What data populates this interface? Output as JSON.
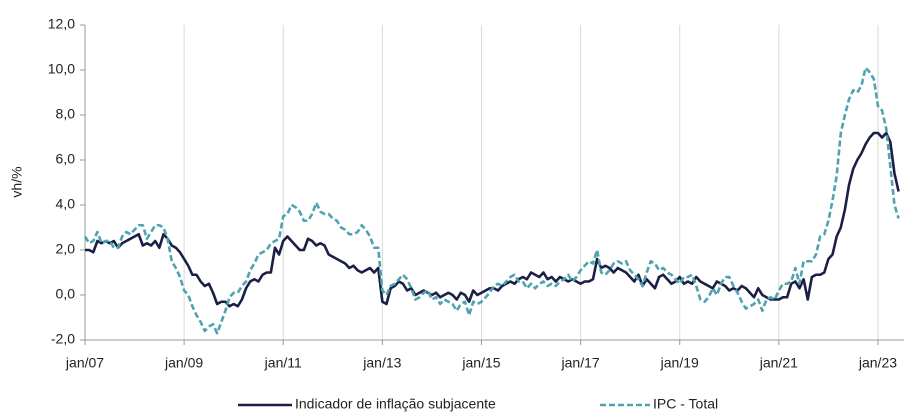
{
  "chart_data": {
    "type": "line",
    "y_label": "vh/%",
    "categories": [
      "jan/07",
      null,
      null,
      null,
      null,
      null,
      null,
      null,
      null,
      null,
      null,
      null,
      null,
      null,
      null,
      null,
      null,
      null,
      null,
      null,
      null,
      null,
      null,
      null,
      "jan/09",
      null,
      null,
      null,
      null,
      null,
      null,
      null,
      null,
      null,
      null,
      null,
      null,
      null,
      null,
      null,
      null,
      null,
      null,
      null,
      null,
      null,
      null,
      null,
      "jan/11",
      null,
      null,
      null,
      null,
      null,
      null,
      null,
      null,
      null,
      null,
      null,
      null,
      null,
      null,
      null,
      null,
      null,
      null,
      null,
      null,
      null,
      null,
      null,
      "jan/13",
      null,
      null,
      null,
      null,
      null,
      null,
      null,
      null,
      null,
      null,
      null,
      null,
      null,
      null,
      null,
      null,
      null,
      null,
      null,
      null,
      null,
      null,
      null,
      "jan/15",
      null,
      null,
      null,
      null,
      null,
      null,
      null,
      null,
      null,
      null,
      null,
      null,
      null,
      null,
      null,
      null,
      null,
      null,
      null,
      null,
      null,
      null,
      null,
      "jan/17",
      null,
      null,
      null,
      null,
      null,
      null,
      null,
      null,
      null,
      null,
      null,
      null,
      null,
      null,
      null,
      null,
      null,
      null,
      null,
      null,
      null,
      null,
      null,
      "jan/19",
      null,
      null,
      null,
      null,
      null,
      null,
      null,
      null,
      null,
      null,
      null,
      null,
      null,
      null,
      null,
      null,
      null,
      null,
      null,
      null,
      null,
      null,
      null,
      "jan/21",
      null,
      null,
      null,
      null,
      null,
      null,
      null,
      null,
      null,
      null,
      null,
      null,
      null,
      null,
      null,
      null,
      null,
      null,
      null,
      null,
      null,
      null,
      null,
      "jan/23",
      null,
      null,
      null,
      null,
      null
    ],
    "series": [
      {
        "name": "Indicador de inflação subjacente",
        "color": "#1c1f45",
        "dash": false,
        "values": [
          2.0,
          2.0,
          1.9,
          2.4,
          2.3,
          2.4,
          2.3,
          2.4,
          2.1,
          2.3,
          2.4,
          2.5,
          2.6,
          2.7,
          2.2,
          2.3,
          2.2,
          2.4,
          2.1,
          2.7,
          2.5,
          2.2,
          2.1,
          1.9,
          1.6,
          1.3,
          0.9,
          0.9,
          0.6,
          0.4,
          0.5,
          0.1,
          -0.4,
          -0.3,
          -0.3,
          -0.5,
          -0.4,
          -0.5,
          -0.2,
          0.3,
          0.6,
          0.7,
          0.6,
          0.9,
          1.0,
          1.0,
          2.1,
          1.8,
          2.4,
          2.6,
          2.4,
          2.2,
          2.0,
          2.0,
          2.5,
          2.4,
          2.2,
          2.3,
          2.2,
          1.8,
          1.7,
          1.6,
          1.5,
          1.4,
          1.2,
          1.3,
          1.1,
          1.0,
          1.1,
          1.2,
          1.0,
          1.2,
          -0.3,
          -0.4,
          0.3,
          0.4,
          0.6,
          0.5,
          0.2,
          0.3,
          0.0,
          0.1,
          0.2,
          0.1,
          0.0,
          0.1,
          -0.1,
          0.0,
          0.1,
          0.0,
          -0.2,
          0.1,
          0.0,
          -0.3,
          0.2,
          0.0,
          0.1,
          0.2,
          0.3,
          0.3,
          0.2,
          0.4,
          0.5,
          0.6,
          0.5,
          0.7,
          0.8,
          0.7,
          1.0,
          0.9,
          0.8,
          1.0,
          0.7,
          0.8,
          0.6,
          0.8,
          0.7,
          0.6,
          0.7,
          0.6,
          0.5,
          0.6,
          0.6,
          0.7,
          1.6,
          1.2,
          1.3,
          1.2,
          1.0,
          1.2,
          1.1,
          1.0,
          0.8,
          0.6,
          0.9,
          0.4,
          0.7,
          0.5,
          0.3,
          0.8,
          0.9,
          0.7,
          0.5,
          0.6,
          0.8,
          0.5,
          0.6,
          0.5,
          0.8,
          0.6,
          0.5,
          0.4,
          0.3,
          0.6,
          0.5,
          0.4,
          0.2,
          0.3,
          0.2,
          0.4,
          0.3,
          0.1,
          -0.1,
          0.3,
          0.0,
          -0.1,
          -0.2,
          -0.2,
          -0.2,
          -0.1,
          -0.1,
          0.5,
          0.6,
          0.3,
          0.7,
          -0.2,
          0.8,
          0.9,
          0.9,
          1.0,
          1.6,
          1.8,
          2.6,
          3.0,
          3.8,
          4.9,
          5.6,
          6.0,
          6.3,
          6.7,
          7.0,
          7.2,
          7.2,
          7.0,
          7.2,
          6.8,
          5.4,
          4.6
        ]
      },
      {
        "name": "IPC - Total",
        "color": "#4fa3b0",
        "dash": true,
        "values": [
          2.6,
          2.3,
          2.4,
          2.8,
          2.3,
          2.4,
          2.4,
          2.1,
          2.1,
          2.6,
          2.8,
          2.7,
          2.9,
          3.1,
          3.1,
          2.5,
          2.8,
          3.1,
          3.1,
          3.0,
          2.5,
          1.5,
          1.2,
          0.8,
          0.2,
          0.0,
          -0.5,
          -0.9,
          -1.2,
          -1.6,
          -1.4,
          -1.3,
          -1.7,
          -1.2,
          -0.7,
          -0.1,
          0.1,
          0.1,
          0.4,
          0.6,
          1.1,
          1.4,
          1.8,
          1.9,
          2.0,
          2.3,
          2.4,
          2.5,
          3.5,
          3.6,
          4.0,
          3.9,
          3.7,
          3.3,
          3.3,
          3.6,
          4.1,
          3.7,
          3.6,
          3.6,
          3.4,
          3.3,
          3.0,
          2.9,
          2.7,
          2.7,
          2.8,
          3.1,
          2.9,
          2.6,
          2.1,
          2.1,
          0.2,
          0.0,
          0.4,
          0.5,
          0.7,
          0.9,
          0.7,
          0.3,
          -0.2,
          -0.1,
          0.1,
          0.2,
          -0.2,
          -0.1,
          -0.4,
          -0.2,
          -0.3,
          -0.4,
          -0.7,
          -0.4,
          -0.3,
          -0.9,
          -0.3,
          -0.4,
          -0.3,
          -0.1,
          0.1,
          0.4,
          0.5,
          0.4,
          0.6,
          0.8,
          0.9,
          0.6,
          0.6,
          0.3,
          0.5,
          0.3,
          0.5,
          0.6,
          0.4,
          0.5,
          0.4,
          0.6,
          0.7,
          0.9,
          0.6,
          0.8,
          1.1,
          1.3,
          1.5,
          1.4,
          2.0,
          1.0,
          0.9,
          1.1,
          1.4,
          1.5,
          1.4,
          1.5,
          1.1,
          0.9,
          0.7,
          0.4,
          1.0,
          1.5,
          1.4,
          1.1,
          1.2,
          1.0,
          0.9,
          0.7,
          0.5,
          0.8,
          0.8,
          0.9,
          0.4,
          -0.2,
          -0.3,
          -0.1,
          0.3,
          0.0,
          0.5,
          0.8,
          0.8,
          0.4,
          0.1,
          -0.3,
          -0.6,
          -0.5,
          -0.4,
          -0.2,
          -0.7,
          -0.2,
          -0.1,
          -0.2,
          0.2,
          0.5,
          0.5,
          0.6,
          1.2,
          0.5,
          1.5,
          1.5,
          1.5,
          1.8,
          2.6,
          2.7,
          3.3,
          4.2,
          5.3,
          7.2,
          8.0,
          8.7,
          9.1,
          9.0,
          9.3,
          10.1,
          9.9,
          9.6,
          8.4,
          8.2,
          7.4,
          5.7,
          4.0,
          3.4
        ]
      }
    ],
    "ylim": [
      -2,
      12
    ],
    "yticks": [
      {
        "value": -2,
        "label": "-2,0"
      },
      {
        "value": 0,
        "label": "0,0"
      },
      {
        "value": 2,
        "label": "2,0"
      },
      {
        "value": 4,
        "label": "4,0"
      },
      {
        "value": 6,
        "label": "6,0"
      },
      {
        "value": 8,
        "label": "8,0"
      },
      {
        "value": 10,
        "label": "10,0"
      },
      {
        "value": 12,
        "label": "12,0"
      }
    ],
    "xgrid": true,
    "legend": "bottom"
  }
}
